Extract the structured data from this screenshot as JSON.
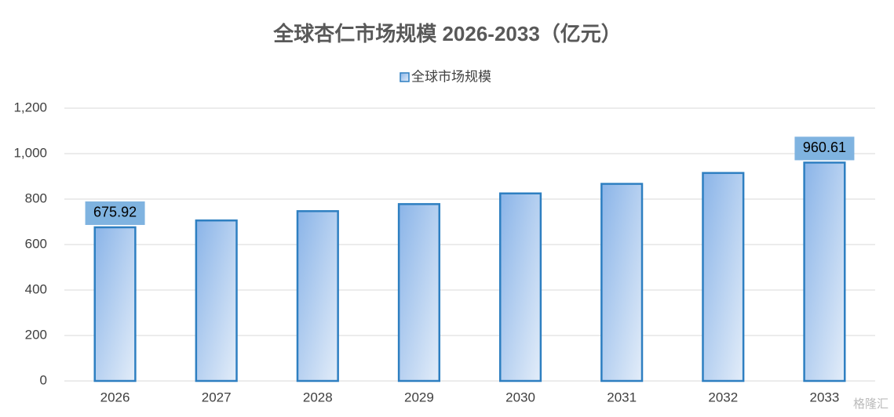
{
  "chart_data": {
    "type": "bar",
    "title": "全球杏仁市场规模 2026-2033（亿元）",
    "categories": [
      "2026",
      "2027",
      "2028",
      "2029",
      "2030",
      "2031",
      "2032",
      "2033"
    ],
    "series": [
      {
        "name": "全球市场规模",
        "color": "#2e7fc1",
        "values": [
          675.92,
          706,
          747,
          778,
          825,
          867,
          915,
          960.61
        ],
        "value_labels": [
          "675.92",
          null,
          null,
          null,
          null,
          null,
          null,
          "960.61"
        ]
      }
    ],
    "ylim": [
      0,
      1200
    ],
    "yticks": [
      0,
      200,
      400,
      600,
      800,
      {
        "value": 1000,
        "label": "1,000"
      },
      {
        "value": 1200,
        "label": "1,200"
      }
    ],
    "grid": true,
    "legend": "top",
    "watermark": "格隆汇"
  }
}
